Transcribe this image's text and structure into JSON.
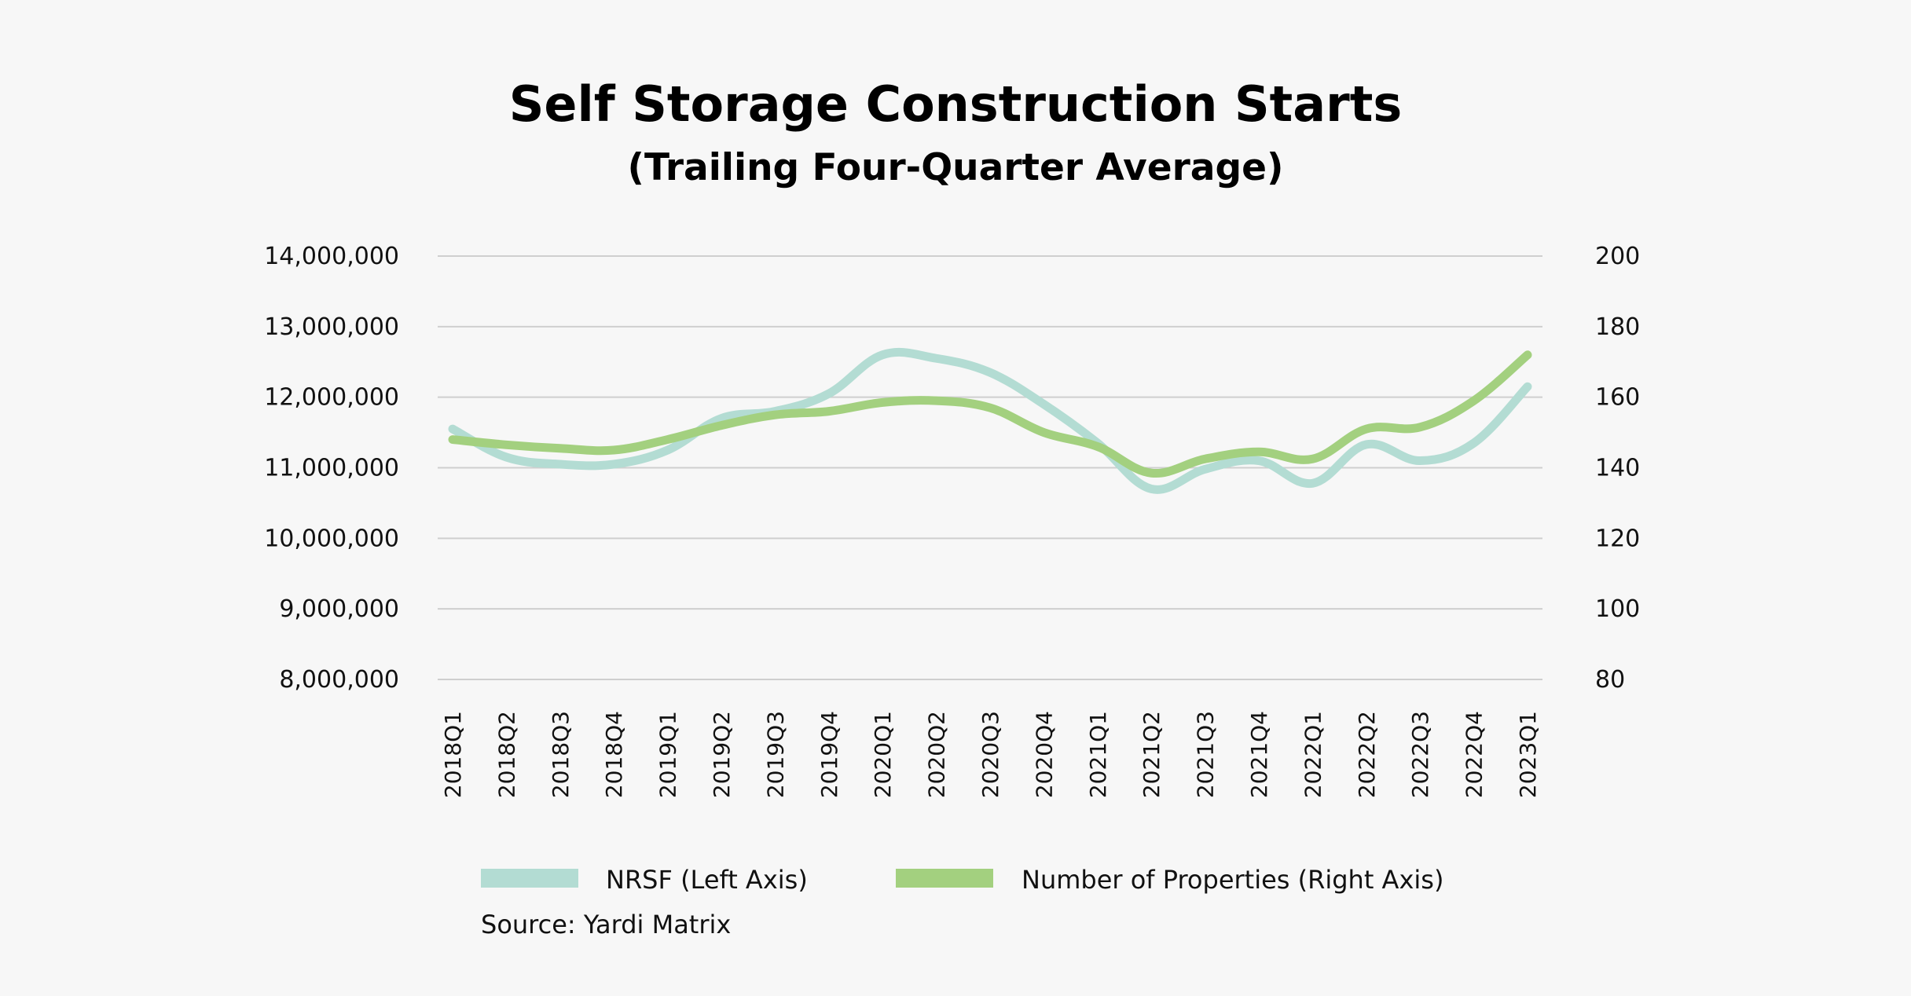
{
  "chart_data": {
    "type": "line",
    "title": "Self Storage Construction Starts",
    "subtitle": "(Trailing Four-Quarter Average)",
    "categories": [
      "2018Q1",
      "2018Q2",
      "2018Q3",
      "2018Q4",
      "2019Q1",
      "2019Q2",
      "2019Q3",
      "2019Q4",
      "2020Q1",
      "2020Q2",
      "2020Q3",
      "2020Q4",
      "2021Q1",
      "2021Q2",
      "2021Q3",
      "2021Q4",
      "2022Q1",
      "2022Q2",
      "2022Q3",
      "2022Q4",
      "2023Q1"
    ],
    "left_axis": {
      "ylim": [
        8000000,
        14000000
      ],
      "ticks": [
        8000000,
        9000000,
        10000000,
        11000000,
        12000000,
        13000000,
        14000000
      ],
      "tick_labels": [
        "8,000,000",
        "9,000,000",
        "10,000,000",
        "11,000,000",
        "12,000,000",
        "13,000,000",
        "14,000,000"
      ]
    },
    "right_axis": {
      "ylim": [
        80,
        200
      ],
      "ticks": [
        80,
        100,
        120,
        140,
        160,
        180,
        200
      ],
      "tick_labels": [
        "80",
        "100",
        "120",
        "140",
        "160",
        "180",
        "200"
      ]
    },
    "grid": true,
    "legend_position": "bottom",
    "series": [
      {
        "name": "NRSF (Left Axis)",
        "axis": "left",
        "color": "#b3dcd3",
        "values": [
          11550000,
          11150000,
          11050000,
          11050000,
          11250000,
          11700000,
          11800000,
          12050000,
          12600000,
          12550000,
          12350000,
          11900000,
          11350000,
          10700000,
          10980000,
          11100000,
          10780000,
          11330000,
          11100000,
          11350000,
          12150000
        ]
      },
      {
        "name": "Number of Properties (Right Axis)",
        "axis": "right",
        "color": "#a3d07f",
        "values": [
          148,
          146.5,
          145.5,
          145,
          148,
          152,
          155,
          156,
          158.5,
          159,
          157,
          150,
          146,
          138.5,
          142.5,
          144.5,
          142.5,
          151,
          151.5,
          159,
          172
        ]
      }
    ],
    "legend": [
      {
        "label": "NRSF (Left Axis)",
        "color": "#b3dcd3"
      },
      {
        "label": "Number of Properties (Right Axis)",
        "color": "#a3d07f"
      }
    ],
    "source": "Source: Yardi Matrix"
  }
}
